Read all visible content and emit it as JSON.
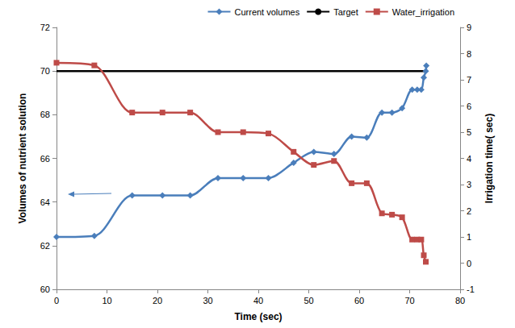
{
  "chart_data": {
    "type": "line",
    "x_label": "Time (sec)",
    "y_label": "Volumes of nutrient solution",
    "y2_label": "Irrigation time( sec)",
    "xlim": [
      0,
      80
    ],
    "xticks": [
      0,
      10,
      20,
      30,
      40,
      50,
      60,
      70,
      80
    ],
    "ylim": [
      60,
      72
    ],
    "yticks": [
      60,
      62,
      64,
      66,
      68,
      70,
      72
    ],
    "y2lim": [
      -1,
      9
    ],
    "y2ticks": [
      -1,
      0,
      1,
      2,
      3,
      4,
      5,
      6,
      7,
      8,
      9
    ],
    "grid": false,
    "legend": "top",
    "series": [
      {
        "name": "Current volumes",
        "color": "#4a7ebb",
        "marker": "diamond",
        "line_style": "solid",
        "x": [
          0,
          7.5,
          15,
          21,
          26.5,
          32,
          37,
          42,
          47,
          51,
          55,
          58.5,
          61.5,
          64.5,
          66.5,
          68.5,
          70.5,
          71.5,
          72.3,
          72.8,
          73.2,
          73.3
        ],
        "values": [
          62.4,
          62.45,
          64.3,
          64.3,
          64.3,
          65.1,
          65.1,
          65.1,
          65.8,
          66.3,
          66.2,
          67.0,
          66.95,
          68.1,
          68.1,
          68.3,
          69.15,
          69.15,
          69.15,
          69.7,
          70.0,
          70.25
        ]
      },
      {
        "name": "Target",
        "color": "#000000",
        "marker": "none",
        "line_style": "solid",
        "x": [
          0,
          73.3
        ],
        "values": [
          70,
          70
        ]
      },
      {
        "name": "Water_irrigation",
        "color": "#be4b48",
        "marker": "square",
        "line_style": "solid",
        "axis": "y2",
        "x": [
          0,
          7.5,
          15,
          21,
          26.5,
          32,
          37,
          42,
          47,
          51,
          55,
          58.5,
          61.5,
          64.5,
          66.5,
          68.5,
          70.5,
          71.5,
          72.3,
          72.8,
          73.2
        ],
        "values": [
          7.65,
          7.55,
          5.75,
          5.75,
          5.75,
          5.0,
          5.0,
          4.95,
          4.25,
          3.75,
          3.9,
          3.05,
          3.05,
          1.9,
          1.85,
          1.75,
          0.9,
          0.9,
          0.9,
          0.3,
          0.05
        ]
      }
    ]
  }
}
